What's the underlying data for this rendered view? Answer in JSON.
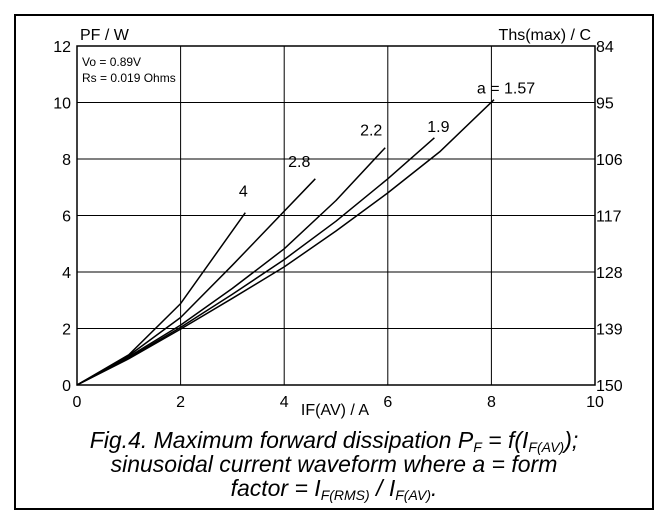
{
  "chart_data": {
    "type": "line",
    "title": "",
    "ylabel": "PF / W",
    "xlabel": "IF(AV) / A",
    "y2label": "Ths(max) / C",
    "xlim": [
      0,
      10
    ],
    "ylim": [
      0,
      12
    ],
    "x_ticks": [
      "0",
      "2",
      "4",
      "6",
      "8",
      "10"
    ],
    "y_ticks": [
      "0",
      "2",
      "4",
      "6",
      "8",
      "10",
      "12"
    ],
    "y2_ticks": [
      "150",
      "139",
      "128",
      "117",
      "106",
      "95",
      "84"
    ],
    "grid": true,
    "notes": [
      "Vo = 0.89V",
      "Rs = 0.019 Ohms"
    ],
    "series": [
      {
        "name": "4",
        "label": "4",
        "x": [
          0,
          1,
          2,
          3.25
        ],
        "y": [
          0,
          1.07,
          2.88,
          6.1
        ]
      },
      {
        "name": "2.8",
        "label": "2.8",
        "x": [
          0,
          1,
          2,
          3,
          4.6
        ],
        "y": [
          0,
          1.04,
          2.39,
          4.24,
          7.3
        ]
      },
      {
        "name": "2.2",
        "label": "2.2",
        "x": [
          0,
          1,
          2,
          3,
          4,
          5,
          5.95
        ],
        "y": [
          0,
          1.0,
          2.12,
          3.42,
          4.82,
          6.53,
          8.4
        ]
      },
      {
        "name": "1.9",
        "label": "1.9",
        "x": [
          0,
          1,
          2,
          3,
          4,
          5,
          6,
          6.9
        ],
        "y": [
          0,
          0.96,
          2.04,
          3.21,
          4.44,
          5.8,
          7.3,
          8.75
        ]
      },
      {
        "name": "a = 1.57",
        "label": "a = 1.57",
        "x": [
          0,
          1,
          2,
          3,
          4,
          5,
          6,
          7,
          8.05
        ],
        "y": [
          0,
          0.93,
          1.98,
          3.07,
          4.18,
          5.45,
          6.8,
          8.25,
          10.1
        ]
      }
    ]
  },
  "caption": {
    "line1_a": "Fig.4.   Maximum forward dissipation P",
    "line1_sub1": "F",
    "line1_b": " = f(I",
    "line1_sub2": "F(AV)",
    "line1_c": ");",
    "line2": "sinusoidal current waveform where a = form",
    "line3_a": "factor = I",
    "line3_sub1": "F(RMS)",
    "line3_b": " / I",
    "line3_sub2": "F(AV)",
    "line3_c": "."
  }
}
